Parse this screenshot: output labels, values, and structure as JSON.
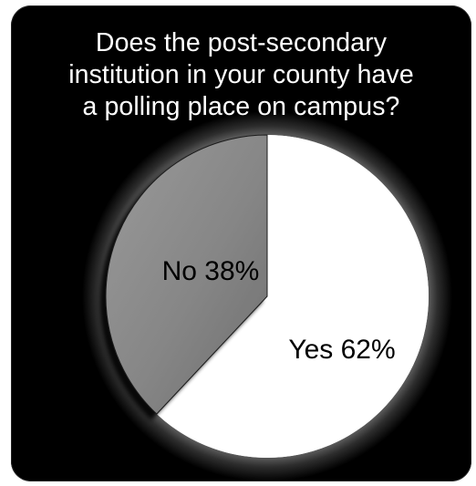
{
  "chart_data": {
    "type": "pie",
    "title": [
      "Does the post-secondary",
      "institution in your county have",
      "a polling place on campus?"
    ],
    "slices": [
      {
        "label": "Yes 62%",
        "category": "Yes",
        "value": 62,
        "color": "#ffffff"
      },
      {
        "label": "No 38%",
        "category": "No",
        "value": 38,
        "color": "#8a8a8a"
      }
    ],
    "start_angle_deg": 0,
    "direction": "clockwise",
    "background": "#000000",
    "glow_color": "#ffffff"
  }
}
